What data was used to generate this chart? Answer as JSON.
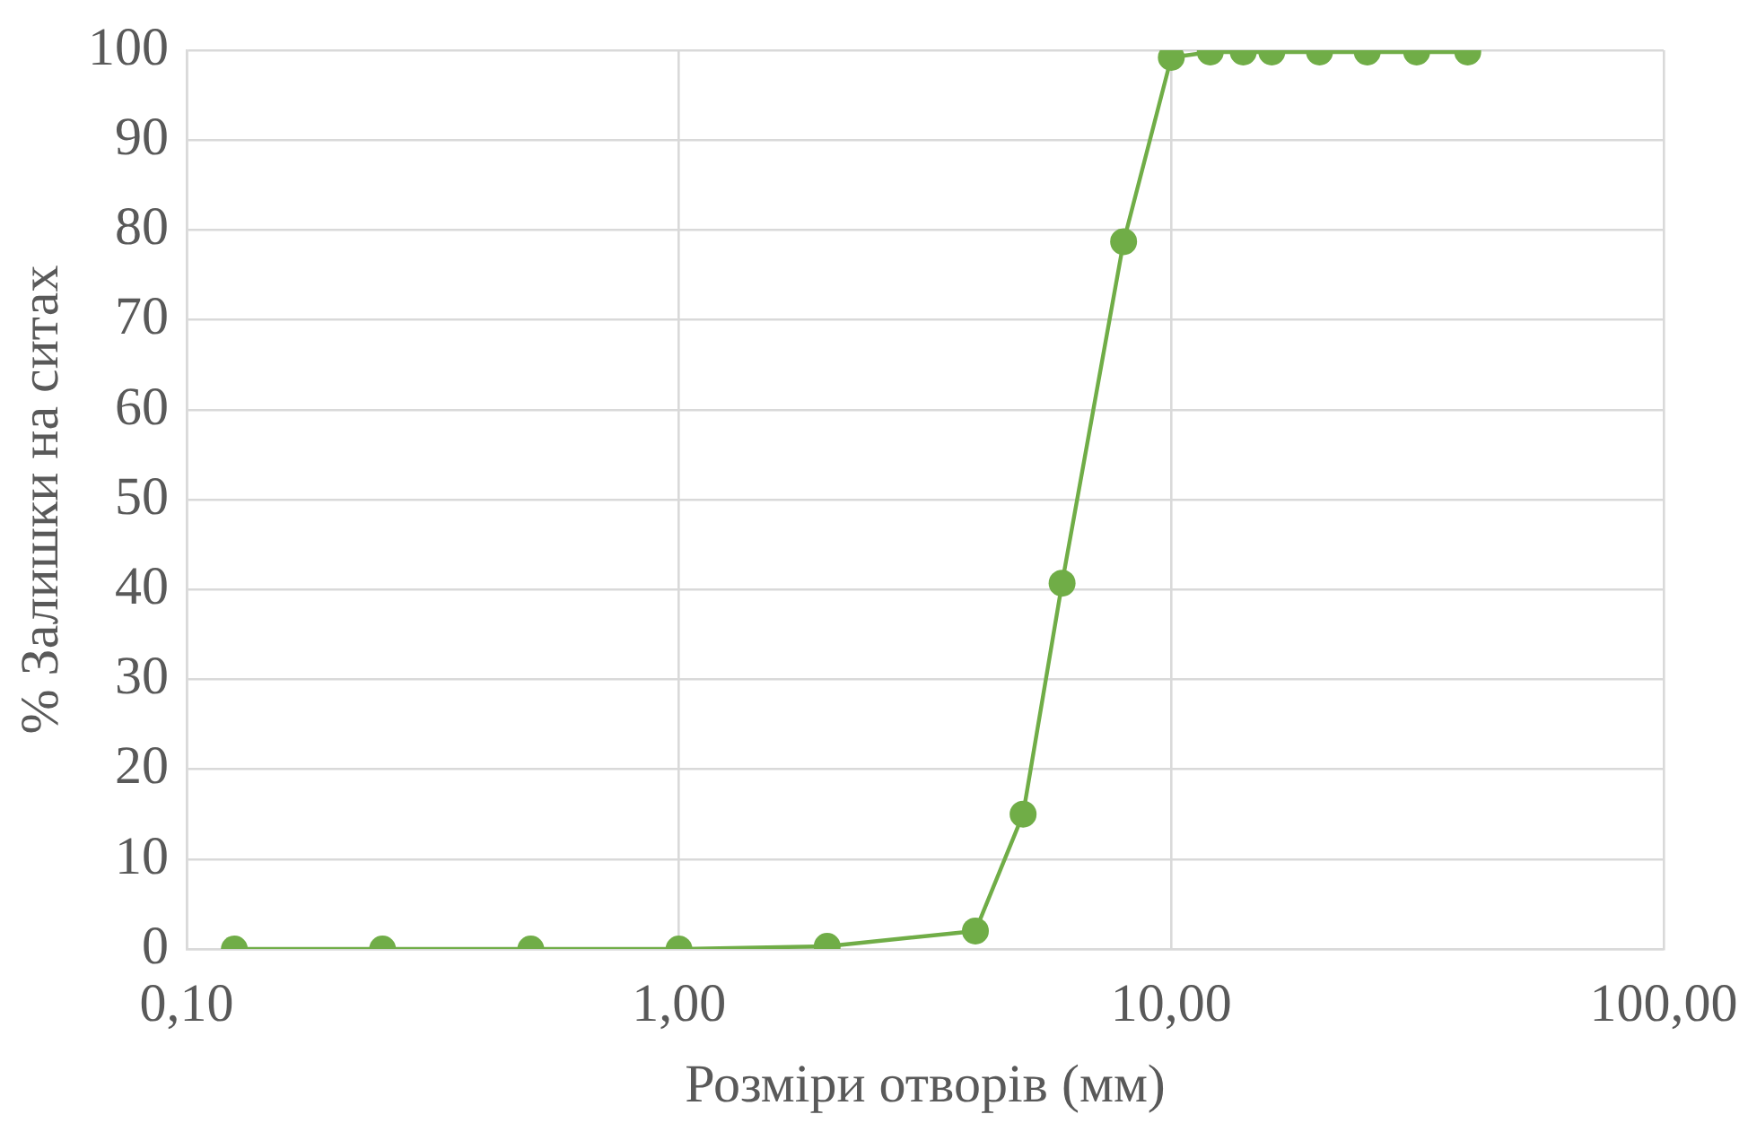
{
  "chart_data": {
    "type": "line",
    "xlabel": "Розміри отворів (мм)",
    "ylabel": "% Залишки на ситах",
    "x": [
      0.125,
      0.25,
      0.5,
      1,
      2,
      4,
      5,
      6,
      8,
      10,
      12,
      14,
      16,
      20,
      25,
      31.5,
      40
    ],
    "values": [
      0,
      0,
      0,
      0,
      0.3,
      2,
      15,
      40.7,
      78.7,
      99.2,
      99.8,
      99.8,
      99.8,
      99.8,
      99.8,
      99.8,
      99.8
    ],
    "color": "#70ad47",
    "log": "x",
    "xlim": [
      0.1,
      100
    ],
    "xticks": [
      {
        "value": 0.1,
        "label": "0,10"
      },
      {
        "value": 1,
        "label": "1,00"
      },
      {
        "value": 10,
        "label": "10,00"
      },
      {
        "value": 100,
        "label": "100,00"
      }
    ],
    "ylim": [
      0,
      100
    ],
    "yticks": [
      0,
      10,
      20,
      30,
      40,
      50,
      60,
      70,
      80,
      90,
      100
    ],
    "grid": true,
    "marker": "circle",
    "line_style": "solid"
  }
}
